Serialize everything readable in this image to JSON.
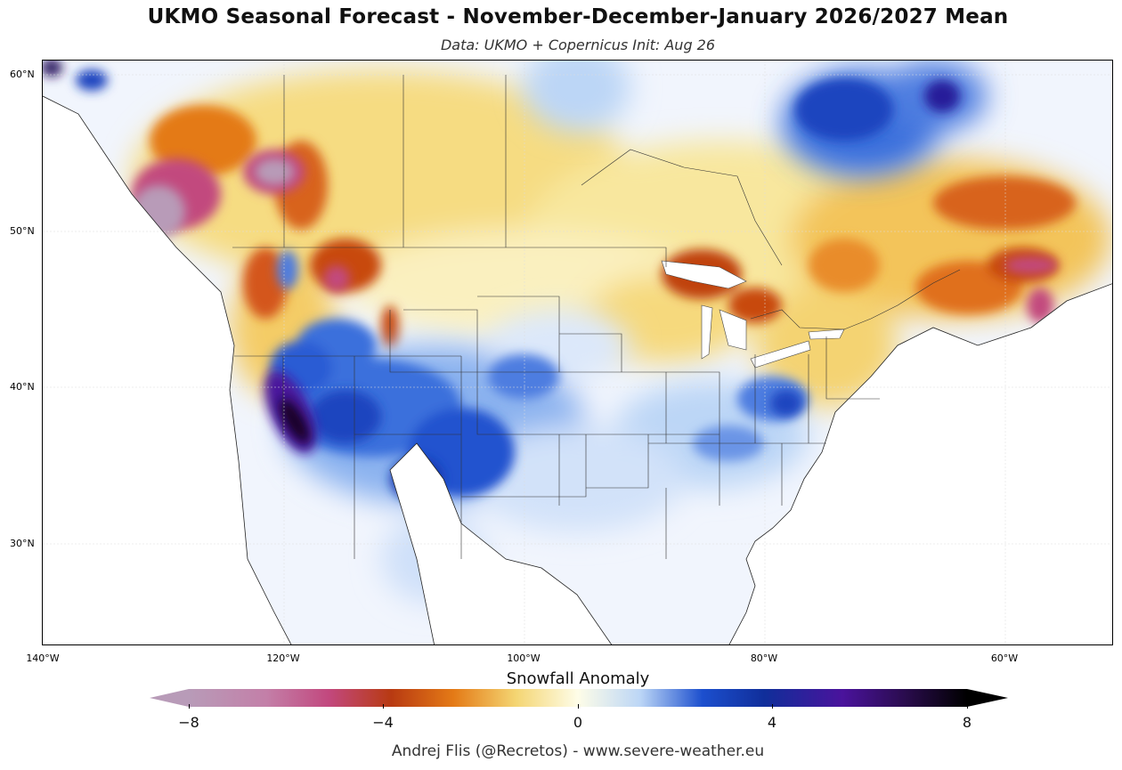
{
  "title": "UKMO Seasonal Forecast - November-December-January 2026/2027 Mean",
  "subtitle": "Data: UKMO + Copernicus   Init: Aug 26",
  "latitude_labels": [
    "60°N",
    "50°N",
    "40°N",
    "30°N"
  ],
  "longitude_labels": [
    "140°W",
    "120°W",
    "100°W",
    "80°W",
    "60°W"
  ],
  "colorbar": {
    "label": "Snowfall Anomaly",
    "ticks": [
      "−8",
      "−4",
      "0",
      "4",
      "8"
    ],
    "min": -8,
    "max": 8
  },
  "credit": "Andrej Flis (@Recretos) - www.severe-weather.eu",
  "colors": {
    "strong_negative": "#b89bb8",
    "negative_magenta": "#c2487e",
    "negative_red": "#b83a12",
    "negative_orange": "#e47a16",
    "slight_negative": "#f4d572",
    "neutral": "#fefde8",
    "slight_positive": "#bcd6f6",
    "positive_blue": "#1c4fce",
    "strong_positive": "#4a139c",
    "extreme_positive": "#000000"
  }
}
